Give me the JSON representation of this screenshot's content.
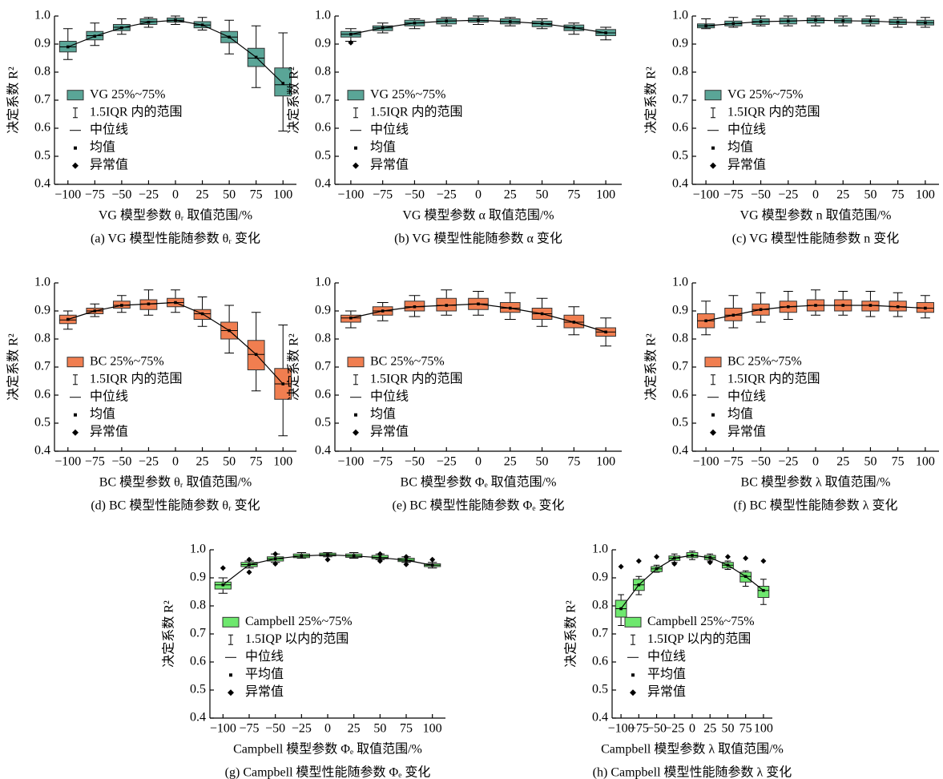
{
  "chart_data": [
    {
      "type": "box",
      "title": "(a) VG 模型性能随参数 θᵣ 变化",
      "xlabel": "VG 模型参数 θᵣ 取值范围/%",
      "ylabel": "决定系数 R²",
      "categories": [
        "−100",
        "−75",
        "−50",
        "−25",
        "0",
        "25",
        "50",
        "75",
        "100"
      ],
      "ylim": [
        0.4,
        1
      ],
      "yticks": [
        0.4,
        0.5,
        0.6,
        0.7,
        0.8,
        0.9,
        {
          "value": 1,
          "label": "1.0"
        }
      ],
      "legend": "center left",
      "legend_entries": [
        "1.5IQR 内的范围",
        "中位线",
        "均值",
        "异常值"
      ],
      "series": [
        {
          "name": "VG 25%~75%",
          "color": "#5aa597",
          "low": [
            0.845,
            0.895,
            0.935,
            0.96,
            0.97,
            0.95,
            0.865,
            0.745,
            0.59
          ],
          "q1": [
            0.872,
            0.915,
            0.948,
            0.97,
            0.978,
            0.958,
            0.905,
            0.82,
            0.715
          ],
          "median": [
            0.89,
            0.93,
            0.96,
            0.98,
            0.985,
            0.968,
            0.925,
            0.85,
            0.755
          ],
          "q3": [
            0.91,
            0.945,
            0.97,
            0.99,
            0.993,
            0.98,
            0.945,
            0.885,
            0.815
          ],
          "high": [
            0.955,
            0.975,
            0.99,
            0.995,
            1,
            0.995,
            0.985,
            0.965,
            0.94
          ],
          "mean": [
            0.89,
            0.928,
            0.958,
            0.978,
            0.985,
            0.968,
            0.925,
            0.853,
            0.76
          ],
          "outliers": [
            [],
            [],
            [],
            [],
            [],
            [],
            [],
            [],
            []
          ]
        }
      ]
    },
    {
      "type": "box",
      "title": "(b) VG 模型性能随参数 α 变化",
      "xlabel": "VG 模型参数 α 取值范围/%",
      "ylabel": "决定系数 R²",
      "categories": [
        "−100",
        "−75",
        "−50",
        "−25",
        "0",
        "25",
        "50",
        "75",
        "100"
      ],
      "ylim": [
        0.4,
        1
      ],
      "yticks": [
        0.4,
        0.5,
        0.6,
        0.7,
        0.8,
        0.9,
        {
          "value": 1,
          "label": "1.0"
        }
      ],
      "legend": "center left",
      "legend_entries": [
        "1.5IQR 内的范围",
        "中位线",
        "均值",
        "异常值"
      ],
      "series": [
        {
          "name": "VG 25%~75%",
          "color": "#5aa597",
          "low": [
            0.91,
            0.94,
            0.955,
            0.965,
            0.97,
            0.965,
            0.955,
            0.935,
            0.915
          ],
          "q1": [
            0.925,
            0.948,
            0.965,
            0.972,
            0.978,
            0.972,
            0.962,
            0.948,
            0.93
          ],
          "median": [
            0.935,
            0.958,
            0.975,
            0.982,
            0.985,
            0.98,
            0.973,
            0.958,
            0.94
          ],
          "q3": [
            0.945,
            0.965,
            0.985,
            0.99,
            0.993,
            0.99,
            0.982,
            0.968,
            0.952
          ],
          "high": [
            0.955,
            0.975,
            0.99,
            0.995,
            1,
            0.995,
            0.99,
            0.975,
            0.96
          ],
          "mean": [
            0.935,
            0.958,
            0.975,
            0.982,
            0.985,
            0.98,
            0.973,
            0.958,
            0.94
          ],
          "outliers": [
            [
              0.905
            ],
            [],
            [],
            [],
            [],
            [],
            [],
            [],
            []
          ]
        }
      ]
    },
    {
      "type": "box",
      "title": "(c) VG 模型性能随参数 n 变化",
      "xlabel": "VG 模型参数 n 取值范围/%",
      "ylabel": "决定系数 R²",
      "categories": [
        "−100",
        "−75",
        "−50",
        "−25",
        "0",
        "25",
        "50",
        "75",
        "100"
      ],
      "ylim": [
        0.4,
        1
      ],
      "yticks": [
        0.4,
        0.5,
        0.6,
        0.7,
        0.8,
        0.9,
        {
          "value": 1,
          "label": "1.0"
        }
      ],
      "legend": "center left",
      "legend_entries": [
        "1.5IQR 内的范围",
        "中位线",
        "均值",
        "异常值"
      ],
      "series": [
        {
          "name": "VG 25%~75%",
          "color": "#5aa597",
          "low": [
            0.955,
            0.96,
            0.965,
            0.965,
            0.965,
            0.965,
            0.965,
            0.96,
            0.96
          ],
          "q1": [
            0.958,
            0.965,
            0.97,
            0.972,
            0.975,
            0.975,
            0.972,
            0.97,
            0.968
          ],
          "median": [
            0.965,
            0.973,
            0.98,
            0.982,
            0.985,
            0.983,
            0.982,
            0.978,
            0.976
          ],
          "q3": [
            0.972,
            0.982,
            0.99,
            0.992,
            0.993,
            0.992,
            0.99,
            0.988,
            0.985
          ],
          "high": [
            0.99,
            0.995,
            1,
            1,
            1,
            1,
            1,
            0.995,
            0.995
          ],
          "mean": [
            0.965,
            0.973,
            0.98,
            0.982,
            0.985,
            0.983,
            0.982,
            0.978,
            0.976
          ],
          "outliers": [
            [],
            [],
            [],
            [],
            [],
            [],
            [],
            [],
            []
          ]
        }
      ]
    },
    {
      "type": "box",
      "title": "(d) BC 模型性能随参数 θᵣ 变化",
      "xlabel": "BC 模型参数 θᵣ 取值范围/%",
      "ylabel": "决定系数 R²",
      "categories": [
        "−100",
        "−75",
        "−50",
        "−25",
        "0",
        "25",
        "50",
        "75",
        "100"
      ],
      "ylim": [
        0.4,
        1
      ],
      "yticks": [
        0.4,
        0.5,
        0.6,
        0.7,
        0.8,
        0.9,
        {
          "value": 1,
          "label": "1.0"
        }
      ],
      "legend": "center left",
      "legend_entries": [
        "1.5IQR 内的范围",
        "中位线",
        "均值",
        "异常值"
      ],
      "series": [
        {
          "name": "BC 25%~75%",
          "color": "#f07e50",
          "low": [
            0.835,
            0.88,
            0.895,
            0.885,
            0.895,
            0.845,
            0.75,
            0.615,
            0.455
          ],
          "q1": [
            0.855,
            0.89,
            0.91,
            0.905,
            0.915,
            0.87,
            0.8,
            0.69,
            0.585
          ],
          "median": [
            0.868,
            0.9,
            0.92,
            0.925,
            0.93,
            0.89,
            0.83,
            0.745,
            0.64
          ],
          "q3": [
            0.885,
            0.91,
            0.935,
            0.94,
            0.945,
            0.905,
            0.86,
            0.795,
            0.695
          ],
          "high": [
            0.9,
            0.925,
            0.955,
            0.975,
            0.975,
            0.95,
            0.92,
            0.895,
            0.85
          ],
          "mean": [
            0.87,
            0.9,
            0.92,
            0.925,
            0.93,
            0.89,
            0.83,
            0.745,
            0.64
          ],
          "outliers": [
            [],
            [],
            [],
            [],
            [],
            [],
            [],
            [],
            []
          ]
        }
      ]
    },
    {
      "type": "box",
      "title": "(e) BC 模型性能随参数 Φₑ 变化",
      "xlabel": "BC 模型参数 Φₑ 取值范围/%",
      "ylabel": "决定系数 R²",
      "categories": [
        "−100",
        "−75",
        "−50",
        "−25",
        "0",
        "25",
        "50",
        "75",
        "100"
      ],
      "ylim": [
        0.4,
        1
      ],
      "yticks": [
        0.4,
        0.5,
        0.6,
        0.7,
        0.8,
        0.9,
        {
          "value": 1,
          "label": "1.0"
        }
      ],
      "legend": "center left",
      "legend_entries": [
        "1.5IQR 内的范围",
        "中位线",
        "均值",
        "异常值"
      ],
      "series": [
        {
          "name": "BC 25%~75%",
          "color": "#f07e50",
          "low": [
            0.84,
            0.865,
            0.88,
            0.885,
            0.885,
            0.87,
            0.845,
            0.815,
            0.775
          ],
          "q1": [
            0.86,
            0.885,
            0.9,
            0.9,
            0.905,
            0.895,
            0.87,
            0.84,
            0.81
          ],
          "median": [
            0.875,
            0.9,
            0.915,
            0.92,
            0.925,
            0.91,
            0.89,
            0.86,
            0.825
          ],
          "q3": [
            0.885,
            0.915,
            0.935,
            0.945,
            0.945,
            0.93,
            0.91,
            0.885,
            0.84
          ],
          "high": [
            0.9,
            0.93,
            0.955,
            0.975,
            0.97,
            0.965,
            0.945,
            0.915,
            0.875
          ],
          "mean": [
            0.875,
            0.9,
            0.915,
            0.92,
            0.925,
            0.91,
            0.89,
            0.86,
            0.825
          ],
          "outliers": [
            [],
            [],
            [],
            [],
            [],
            [],
            [],
            [],
            []
          ]
        }
      ]
    },
    {
      "type": "box",
      "title": "(f) BC 模型性能随参数 λ 变化",
      "xlabel": "BC 模型参数 λ 取值范围/%",
      "ylabel": "决定系数 R²",
      "categories": [
        "−100",
        "−75",
        "−50",
        "−25",
        "0",
        "25",
        "50",
        "75",
        "100"
      ],
      "ylim": [
        0.4,
        1
      ],
      "yticks": [
        0.4,
        0.5,
        0.6,
        0.7,
        0.8,
        0.9,
        {
          "value": 1,
          "label": "1.0"
        }
      ],
      "legend": "center left",
      "legend_entries": [
        "1.5IQR 内的范围",
        "中位线",
        "均值",
        "异常值"
      ],
      "series": [
        {
          "name": "BC 25%~75%",
          "color": "#f07e50",
          "low": [
            0.815,
            0.84,
            0.86,
            0.87,
            0.885,
            0.885,
            0.88,
            0.88,
            0.875
          ],
          "q1": [
            0.84,
            0.865,
            0.885,
            0.895,
            0.9,
            0.9,
            0.9,
            0.9,
            0.895
          ],
          "median": [
            0.865,
            0.885,
            0.905,
            0.915,
            0.92,
            0.92,
            0.92,
            0.915,
            0.91
          ],
          "q3": [
            0.89,
            0.91,
            0.925,
            0.935,
            0.94,
            0.94,
            0.935,
            0.935,
            0.93
          ],
          "high": [
            0.935,
            0.955,
            0.965,
            0.97,
            0.975,
            0.97,
            0.97,
            0.965,
            0.955
          ],
          "mean": [
            0.865,
            0.885,
            0.905,
            0.915,
            0.92,
            0.92,
            0.92,
            0.915,
            0.91
          ],
          "outliers": [
            [],
            [],
            [],
            [],
            [],
            [],
            [],
            [],
            []
          ]
        }
      ]
    },
    {
      "type": "box",
      "title": "(g) Campbell 模型性能随参数 Φₑ 变化",
      "xlabel": "Campbell 模型参数 Φₑ 取值范围/%",
      "ylabel": "决定系数 R²",
      "categories": [
        "−100",
        "−75",
        "−50",
        "−25",
        "0",
        "25",
        "50",
        "75",
        "100"
      ],
      "ylim": [
        0.4,
        1
      ],
      "yticks": [
        0.4,
        0.5,
        0.6,
        0.7,
        0.8,
        0.9,
        {
          "value": 1,
          "label": "1.0"
        }
      ],
      "legend": "lower left",
      "legend_entries": [
        "1.5IQP 以内的范围",
        "中位线",
        "平均值",
        "异常值"
      ],
      "series": [
        {
          "name": "Campbell 25%~75%",
          "color": "#6ee86e",
          "low": [
            0.845,
            0.935,
            0.955,
            0.97,
            0.975,
            0.97,
            0.965,
            0.955,
            0.935
          ],
          "q1": [
            0.86,
            0.94,
            0.96,
            0.972,
            0.978,
            0.973,
            0.968,
            0.958,
            0.94
          ],
          "median": [
            0.875,
            0.947,
            0.968,
            0.978,
            0.982,
            0.978,
            0.972,
            0.963,
            0.945
          ],
          "q3": [
            0.885,
            0.955,
            0.975,
            0.985,
            0.988,
            0.985,
            0.98,
            0.97,
            0.95
          ],
          "high": [
            0.9,
            0.96,
            0.985,
            0.99,
            0.99,
            0.99,
            0.985,
            0.975,
            0.955
          ],
          "mean": [
            0.875,
            0.947,
            0.968,
            0.978,
            0.982,
            0.978,
            0.972,
            0.963,
            0.945
          ],
          "outliers": [
            [
              0.935
            ],
            [
              0.92,
              0.965
            ],
            [
              0.95,
              0.985
            ],
            [],
            [
              0.965
            ],
            [],
            [
              0.96,
              0.985
            ],
            [
              0.948,
              0.975
            ],
            [
              0.965
            ]
          ]
        }
      ]
    },
    {
      "type": "box",
      "title": "(h) Campbell 模型性能随参数 λ 变化",
      "xlabel": "Campbell 模型参数 λ 取值范围/%",
      "ylabel": "决定系数 R²",
      "categories": [
        "−100",
        "−75",
        "−50",
        "−25",
        "0",
        "25",
        "50",
        "75",
        "100"
      ],
      "ylim": [
        0.4,
        1
      ],
      "yticks": [
        0.4,
        0.5,
        0.6,
        0.7,
        0.8,
        0.9,
        {
          "value": 1,
          "label": "1.0"
        }
      ],
      "legend": "lower left",
      "legend_entries": [
        "1.5IQP 以内的范围",
        "中位线",
        "平均值",
        "异常值"
      ],
      "series": [
        {
          "name": "Campbell 25%~75%",
          "color": "#6ee86e",
          "low": [
            0.73,
            0.84,
            0.92,
            0.955,
            0.965,
            0.96,
            0.93,
            0.87,
            0.805
          ],
          "q1": [
            0.76,
            0.855,
            0.922,
            0.962,
            0.972,
            0.965,
            0.935,
            0.885,
            0.83
          ],
          "median": [
            0.79,
            0.875,
            0.932,
            0.97,
            0.98,
            0.972,
            0.945,
            0.905,
            0.855
          ],
          "q3": [
            0.82,
            0.895,
            0.94,
            0.978,
            0.99,
            0.98,
            0.955,
            0.92,
            0.87
          ],
          "high": [
            0.84,
            0.905,
            0.945,
            0.985,
            0.995,
            0.985,
            0.96,
            0.925,
            0.895
          ],
          "mean": [
            0.79,
            0.875,
            0.932,
            0.97,
            0.98,
            0.972,
            0.945,
            0.905,
            0.855
          ],
          "outliers": [
            [
              0.94
            ],
            [
              0.96
            ],
            [
              0.975
            ],
            [
              0.95
            ],
            [],
            [
              0.955
            ],
            [
              0.975
            ],
            [
              0.97
            ],
            [
              0.96
            ]
          ]
        }
      ]
    }
  ]
}
